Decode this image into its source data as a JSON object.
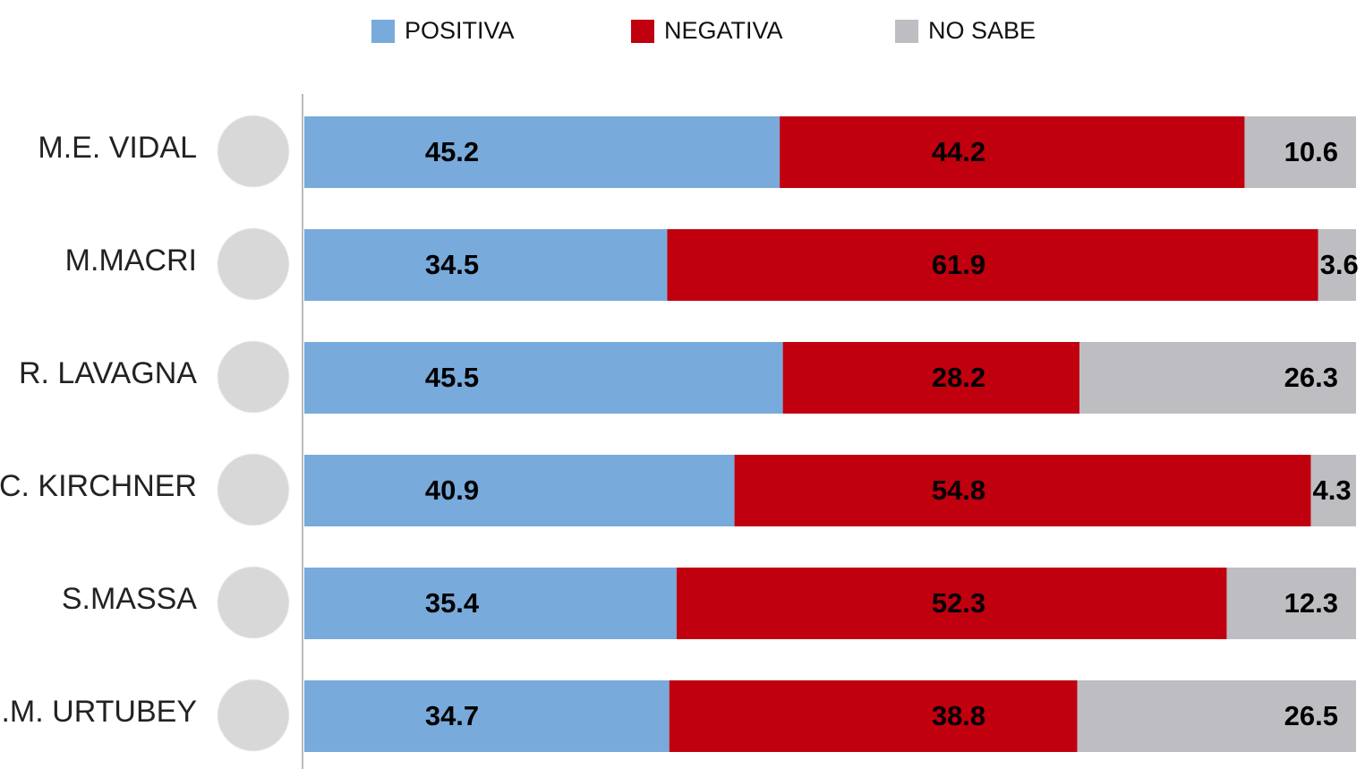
{
  "chart_data": {
    "type": "stacked-bar-horizontal",
    "categories": [
      "M.E. VIDAL",
      "M.MACRI",
      "R. LAVAGNA",
      "C. KIRCHNER",
      "S.MASSA",
      "J.M. URTUBEY"
    ],
    "series": [
      {
        "name": "POSITIVA",
        "color": "#78aadb",
        "values": [
          45.2,
          34.5,
          45.5,
          40.9,
          35.4,
          34.7
        ]
      },
      {
        "name": "NEGATIVA",
        "color": "#c0000f",
        "values": [
          44.2,
          61.9,
          28.2,
          54.8,
          52.3,
          38.8
        ]
      },
      {
        "name": "NO SABE",
        "color": "#bdbdc2",
        "values": [
          10.6,
          3.6,
          26.3,
          4.3,
          12.3,
          26.5
        ]
      }
    ],
    "xlim": [
      0,
      100
    ]
  }
}
